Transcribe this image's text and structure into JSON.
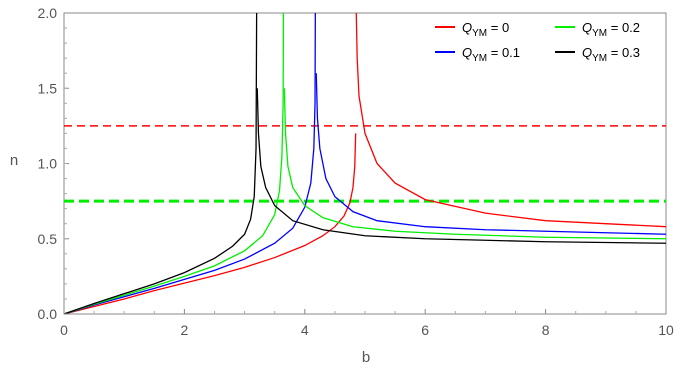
{
  "chart_data": {
    "type": "line",
    "title": "",
    "xlabel": "b",
    "ylabel": "n",
    "xlim": [
      0,
      10
    ],
    "ylim": [
      0,
      2.0
    ],
    "x_ticks": [
      0,
      2,
      4,
      6,
      8,
      10
    ],
    "x_tick_labels": [
      "0",
      "2",
      "4",
      "6",
      "8",
      "10"
    ],
    "y_ticks": [
      0,
      0.5,
      1.0,
      1.5,
      2.0
    ],
    "y_tick_labels": [
      "0.0",
      "0.5",
      "1.0",
      "1.5",
      "2.0"
    ],
    "grid": false,
    "legend_position": "top-right",
    "series": [
      {
        "name": "Q_YM = 0",
        "label_main": "Q",
        "label_sub": "YM",
        "label_rest": " = 0",
        "color": "#ff0000",
        "asymptote_b": 4.85,
        "x": [
          0,
          0.5,
          1,
          1.5,
          2,
          2.5,
          3,
          3.5,
          4,
          4.3,
          4.5,
          4.65,
          4.75,
          4.8,
          4.83,
          4.845,
          4.855,
          4.87,
          4.9,
          5.0,
          5.2,
          5.5,
          6,
          7,
          8,
          9,
          10
        ],
        "y": [
          0,
          0.05,
          0.1,
          0.155,
          0.205,
          0.255,
          0.31,
          0.375,
          0.455,
          0.52,
          0.58,
          0.65,
          0.74,
          0.84,
          0.98,
          1.2,
          2.0,
          1.7,
          1.45,
          1.2,
          1.0,
          0.87,
          0.76,
          0.67,
          0.62,
          0.6,
          0.58
        ]
      },
      {
        "name": "Q_YM = 0.1",
        "label_main": "Q",
        "label_sub": "YM",
        "label_rest": " = 0.1",
        "color": "#0000ff",
        "asymptote_b": 4.18,
        "x": [
          0,
          0.5,
          1,
          1.5,
          2,
          2.5,
          3,
          3.5,
          3.8,
          4.0,
          4.1,
          4.15,
          4.17,
          4.175,
          4.19,
          4.21,
          4.25,
          4.35,
          4.5,
          4.8,
          5.2,
          6,
          7,
          8,
          9,
          10
        ],
        "y": [
          0,
          0.06,
          0.115,
          0.17,
          0.23,
          0.29,
          0.365,
          0.47,
          0.57,
          0.71,
          0.87,
          1.1,
          1.4,
          2.0,
          1.6,
          1.3,
          1.1,
          0.9,
          0.78,
          0.68,
          0.62,
          0.58,
          0.56,
          0.55,
          0.54,
          0.53
        ]
      },
      {
        "name": "Q_YM = 0.2",
        "label_main": "Q",
        "label_sub": "YM",
        "label_rest": " = 0.2",
        "color": "#00ee00",
        "asymptote_b": 3.65,
        "x": [
          0,
          0.5,
          1,
          1.5,
          2,
          2.5,
          3,
          3.3,
          3.5,
          3.58,
          3.62,
          3.64,
          3.645,
          3.66,
          3.68,
          3.72,
          3.8,
          4.0,
          4.3,
          4.8,
          5.5,
          6.5,
          8,
          10
        ],
        "y": [
          0,
          0.065,
          0.125,
          0.185,
          0.25,
          0.32,
          0.42,
          0.52,
          0.66,
          0.82,
          1.05,
          1.4,
          2.0,
          1.5,
          1.2,
          0.98,
          0.84,
          0.72,
          0.64,
          0.58,
          0.55,
          0.53,
          0.51,
          0.5
        ]
      },
      {
        "name": "Q_YM = 0.3",
        "label_main": "Q",
        "label_sub": "YM",
        "label_rest": " = 0.3",
        "color": "#000000",
        "asymptote_b": 3.2,
        "x": [
          0,
          0.5,
          1,
          1.5,
          2,
          2.5,
          2.8,
          3.0,
          3.1,
          3.16,
          3.19,
          3.2,
          3.21,
          3.23,
          3.27,
          3.35,
          3.5,
          3.8,
          4.3,
          5,
          6,
          7,
          8,
          10
        ],
        "y": [
          0,
          0.07,
          0.135,
          0.2,
          0.275,
          0.37,
          0.45,
          0.53,
          0.63,
          0.78,
          1.1,
          2.0,
          1.5,
          1.2,
          0.98,
          0.84,
          0.72,
          0.62,
          0.56,
          0.52,
          0.5,
          0.49,
          0.48,
          0.47
        ]
      }
    ],
    "reference_lines": [
      {
        "y": 1.25,
        "color": "#ff0000",
        "style": "dashed",
        "weight": "thin"
      },
      {
        "y": 0.75,
        "color": "#00ee00",
        "style": "dashed",
        "weight": "thick"
      }
    ]
  }
}
